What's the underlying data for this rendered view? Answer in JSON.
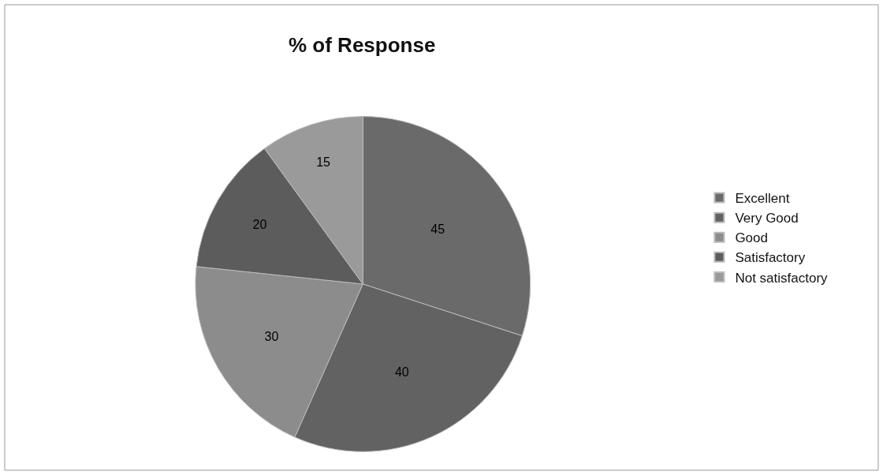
{
  "chart_data": {
    "type": "pie",
    "title": "% of Response",
    "categories": [
      "Excellent",
      "Very Good",
      "Good",
      "Satisfactory",
      "Not satisfactory"
    ],
    "values": [
      45,
      40,
      30,
      20,
      15
    ],
    "colors": [
      "#6a6a6a",
      "#626262",
      "#8c8c8c",
      "#5c5c5c",
      "#9a9a9a"
    ],
    "data_labels": true,
    "legend": "right"
  }
}
